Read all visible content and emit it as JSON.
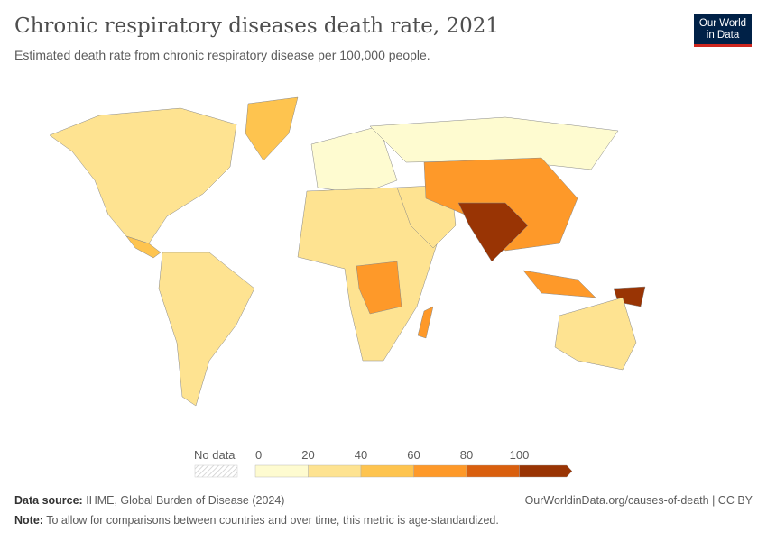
{
  "title": "Chronic respiratory diseases death rate, 2021",
  "subtitle": "Estimated death rate from chronic respiratory disease per 100,000 people.",
  "logo": {
    "line1": "Our World",
    "line2": "in Data"
  },
  "legend": {
    "no_data_label": "No data",
    "ticks": [
      "0",
      "20",
      "40",
      "60",
      "80",
      "100"
    ],
    "bins": [
      {
        "from": 0,
        "to": 20,
        "color": "#fefbd0"
      },
      {
        "from": 20,
        "to": 40,
        "color": "#fee391"
      },
      {
        "from": 40,
        "to": 60,
        "color": "#fec44f"
      },
      {
        "from": 60,
        "to": 80,
        "color": "#fe9929"
      },
      {
        "from": 80,
        "to": 100,
        "color": "#d95f0e"
      },
      {
        "from": 100,
        "to": null,
        "color": "#993404"
      }
    ]
  },
  "footer": {
    "source_label": "Data source:",
    "source": "IHME, Global Burden of Disease (2024)",
    "note_label": "Note:",
    "note": "To allow for comparisons between countries and over time, this metric is age-standardized.",
    "url": "OurWorldinData.org/causes-of-death | CC BY"
  }
}
